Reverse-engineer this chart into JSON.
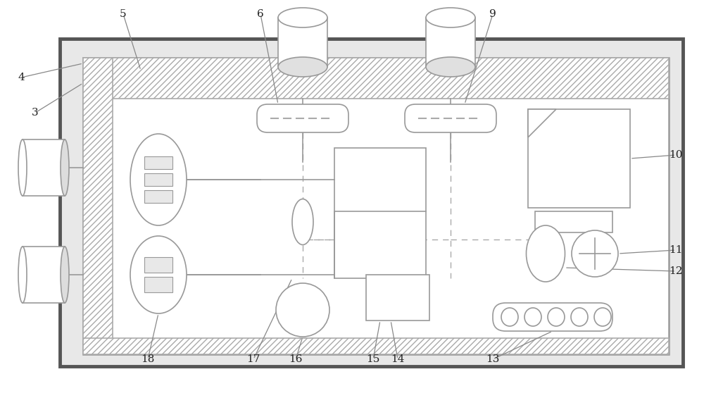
{
  "fig_width": 10.0,
  "fig_height": 5.65,
  "bg_color": "#ffffff",
  "lc": "#999999",
  "lc_dark": "#666666"
}
